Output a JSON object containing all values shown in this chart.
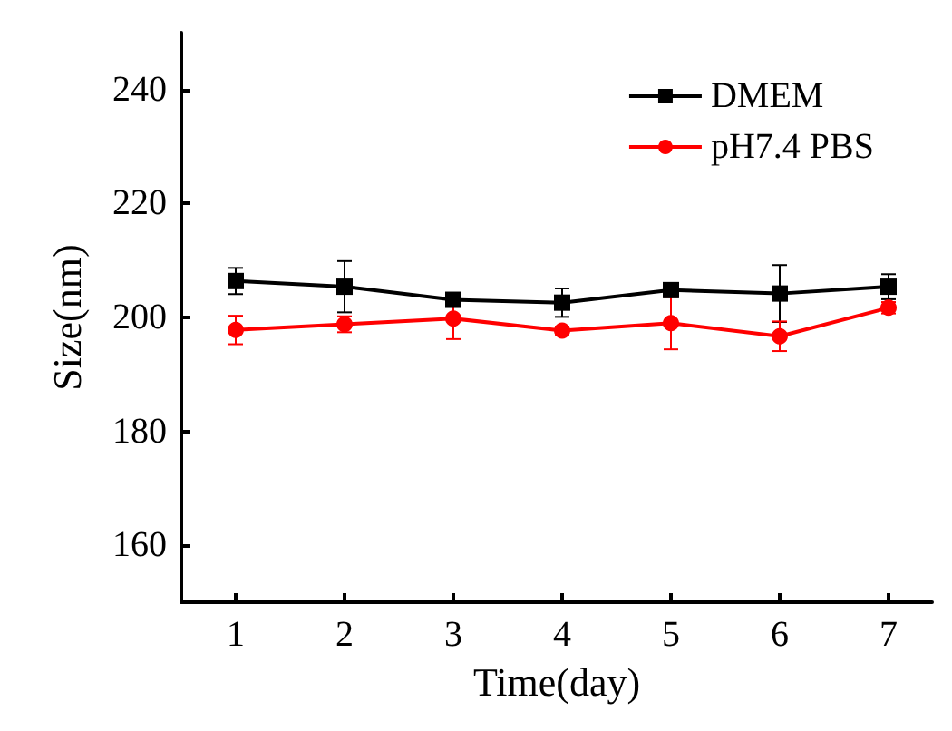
{
  "chart_data": {
    "type": "line",
    "xlabel": "Time(day)",
    "ylabel": "Size(nm)",
    "x": [
      1,
      2,
      3,
      4,
      5,
      6,
      7
    ],
    "xlim": [
      0.5,
      7.4
    ],
    "xticks": [
      1,
      2,
      3,
      4,
      5,
      6,
      7
    ],
    "ylim": [
      150,
      250
    ],
    "yticks": [
      160,
      180,
      200,
      220,
      240
    ],
    "legend": "top right",
    "grid": false,
    "series": [
      {
        "name": "DMEM",
        "color": "#000000",
        "marker": "square",
        "values": [
          206.4,
          205.4,
          203.1,
          202.6,
          204.8,
          204.2,
          205.4
        ],
        "errors": [
          2.3,
          4.5,
          1,
          2.5,
          1,
          5,
          2.2
        ]
      },
      {
        "name": "pH7.4 PBS",
        "color": "#ff0000",
        "marker": "circle",
        "values": [
          197.8,
          198.8,
          199.8,
          197.7,
          199.0,
          196.7,
          201.7
        ],
        "errors": [
          2.5,
          1.4,
          3.6,
          0.7,
          4.6,
          2.6,
          1
        ]
      }
    ]
  }
}
